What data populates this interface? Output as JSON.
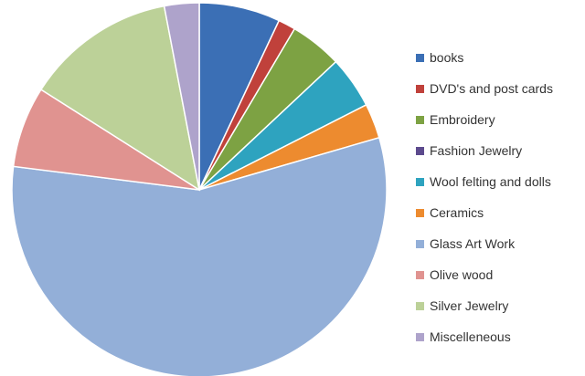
{
  "chart_data": {
    "type": "pie",
    "categories": [
      "books",
      "DVD's and post cards",
      "Embroidery",
      "Fashion Jewelry",
      "Wool felting and dolls",
      "Ceramics",
      "Glass Art Work",
      "Olive wood",
      "Silver Jewelry",
      "Miscelleneous"
    ],
    "values": [
      7,
      1.5,
      4.5,
      0,
      4.5,
      3,
      56.5,
      7,
      13,
      3
    ],
    "colors": [
      "#3b6fb5",
      "#c0413b",
      "#7da243",
      "#5c4a8d",
      "#2ea3bf",
      "#ed8b2f",
      "#93afd8",
      "#e09390",
      "#bcd198",
      "#aea3cb"
    ],
    "legend_position": "right"
  }
}
